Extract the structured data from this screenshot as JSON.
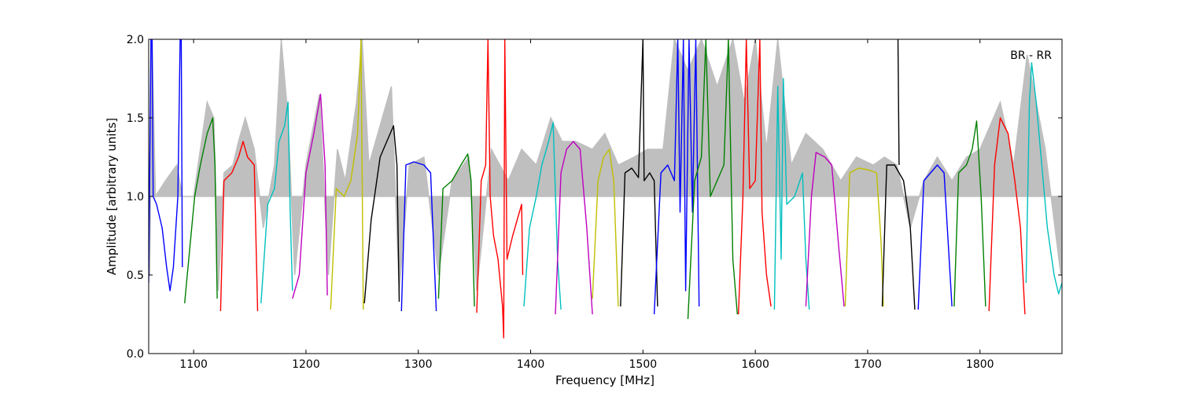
{
  "chart_data": {
    "type": "line",
    "annotation": "BR - RR",
    "xlabel": "Frequency [MHz]",
    "ylabel": "Amplitude [arbitrary units]",
    "xlim": [
      1060,
      1873
    ],
    "ylim": [
      0.0,
      2.0
    ],
    "x_ticks": [
      1100,
      1200,
      1300,
      1400,
      1500,
      1600,
      1700,
      1800
    ],
    "y_ticks": [
      0.0,
      0.5,
      1.0,
      1.5,
      2.0
    ],
    "y_tick_labels": [
      "0.0",
      "0.5",
      "1.0",
      "1.5",
      "2.0"
    ],
    "grid": false,
    "background_series": {
      "color": "#bfbfbf",
      "points": [
        [
          1061,
          0.5
        ],
        [
          1063,
          2.0
        ],
        [
          1066,
          1.0
        ],
        [
          1075,
          1.1
        ],
        [
          1085,
          1.2
        ],
        [
          1090,
          1.0
        ],
        [
          1100,
          1.0
        ],
        [
          1106,
          1.3
        ],
        [
          1112,
          1.6
        ],
        [
          1118,
          1.5
        ],
        [
          1122,
          0.4
        ],
        [
          1127,
          1.15
        ],
        [
          1135,
          1.2
        ],
        [
          1140,
          1.35
        ],
        [
          1146,
          1.5
        ],
        [
          1154,
          1.3
        ],
        [
          1162,
          0.8
        ],
        [
          1172,
          1.2
        ],
        [
          1178,
          2.0
        ],
        [
          1184,
          1.5
        ],
        [
          1190,
          0.5
        ],
        [
          1200,
          1.2
        ],
        [
          1212,
          1.65
        ],
        [
          1220,
          0.5
        ],
        [
          1228,
          1.3
        ],
        [
          1235,
          1.1
        ],
        [
          1245,
          1.6
        ],
        [
          1250,
          2.0
        ],
        [
          1256,
          1.2
        ],
        [
          1268,
          1.5
        ],
        [
          1276,
          1.7
        ],
        [
          1283,
          0.4
        ],
        [
          1292,
          1.2
        ],
        [
          1305,
          1.25
        ],
        [
          1318,
          0.5
        ],
        [
          1330,
          1.1
        ],
        [
          1345,
          1.25
        ],
        [
          1352,
          0.4
        ],
        [
          1365,
          1.3
        ],
        [
          1380,
          1.1
        ],
        [
          1392,
          1.3
        ],
        [
          1405,
          1.2
        ],
        [
          1418,
          1.5
        ],
        [
          1428,
          1.35
        ],
        [
          1440,
          1.35
        ],
        [
          1455,
          1.3
        ],
        [
          1466,
          1.4
        ],
        [
          1478,
          1.2
        ],
        [
          1492,
          1.25
        ],
        [
          1504,
          1.3
        ],
        [
          1518,
          1.3
        ],
        [
          1528,
          2.0
        ],
        [
          1540,
          1.8
        ],
        [
          1552,
          2.0
        ],
        [
          1566,
          1.7
        ],
        [
          1580,
          2.0
        ],
        [
          1590,
          1.6
        ],
        [
          1600,
          2.0
        ],
        [
          1610,
          1.3
        ],
        [
          1620,
          2.0
        ],
        [
          1632,
          1.2
        ],
        [
          1645,
          1.4
        ],
        [
          1660,
          1.3
        ],
        [
          1676,
          1.1
        ],
        [
          1690,
          1.25
        ],
        [
          1705,
          1.2
        ],
        [
          1715,
          1.25
        ],
        [
          1726,
          1.2
        ],
        [
          1738,
          0.8
        ],
        [
          1750,
          1.1
        ],
        [
          1762,
          1.25
        ],
        [
          1775,
          1.1
        ],
        [
          1788,
          1.25
        ],
        [
          1800,
          1.3
        ],
        [
          1818,
          1.6
        ],
        [
          1830,
          1.2
        ],
        [
          1842,
          1.9
        ],
        [
          1858,
          1.3
        ],
        [
          1872,
          0.5
        ]
      ]
    },
    "series": [
      {
        "color": "#0000ff",
        "points": [
          [
            1060,
            0.45
          ],
          [
            1062,
            2.0
          ],
          [
            1063,
            2.0
          ],
          [
            1064,
            1.0
          ],
          [
            1067,
            0.95
          ],
          [
            1072,
            0.8
          ],
          [
            1076,
            0.55
          ],
          [
            1079,
            0.4
          ],
          [
            1082,
            0.55
          ],
          [
            1086,
            1.0
          ],
          [
            1088,
            2.0
          ],
          [
            1089,
            2.0
          ],
          [
            1090,
            0.55
          ]
        ]
      },
      {
        "color": "#008000",
        "points": [
          [
            1092,
            0.32
          ],
          [
            1097,
            0.7
          ],
          [
            1101,
            1.0
          ],
          [
            1106,
            1.2
          ],
          [
            1112,
            1.4
          ],
          [
            1117,
            1.5
          ],
          [
            1119,
            1.2
          ],
          [
            1121,
            0.35
          ]
        ]
      },
      {
        "color": "#ff0000",
        "points": [
          [
            1124,
            0.27
          ],
          [
            1127,
            1.1
          ],
          [
            1134,
            1.15
          ],
          [
            1140,
            1.25
          ],
          [
            1144,
            1.35
          ],
          [
            1148,
            1.25
          ],
          [
            1154,
            1.2
          ],
          [
            1157,
            0.27
          ]
        ]
      },
      {
        "color": "#00bfbf",
        "points": [
          [
            1160,
            0.32
          ],
          [
            1166,
            0.95
          ],
          [
            1172,
            1.05
          ],
          [
            1176,
            1.35
          ],
          [
            1181,
            1.45
          ],
          [
            1184,
            1.6
          ],
          [
            1186,
            0.9
          ],
          [
            1188,
            0.4
          ]
        ]
      },
      {
        "color": "#bf00bf",
        "points": [
          [
            1188,
            0.35
          ],
          [
            1194,
            0.5
          ],
          [
            1200,
            1.15
          ],
          [
            1207,
            1.4
          ],
          [
            1213,
            1.65
          ],
          [
            1217,
            1.2
          ],
          [
            1219,
            0.37
          ]
        ]
      },
      {
        "color": "#bfbf00",
        "points": [
          [
            1222,
            0.28
          ],
          [
            1227,
            1.05
          ],
          [
            1234,
            1.0
          ],
          [
            1240,
            1.1
          ],
          [
            1246,
            1.4
          ],
          [
            1249,
            2.0
          ],
          [
            1251,
            0.28
          ]
        ]
      },
      {
        "color": "#000000",
        "points": [
          [
            1252,
            0.32
          ],
          [
            1258,
            0.85
          ],
          [
            1266,
            1.25
          ],
          [
            1272,
            1.35
          ],
          [
            1278,
            1.45
          ],
          [
            1281,
            1.2
          ],
          [
            1283,
            0.33
          ]
        ]
      },
      {
        "color": "#0000ff",
        "points": [
          [
            1285,
            0.27
          ],
          [
            1289,
            1.2
          ],
          [
            1296,
            1.22
          ],
          [
            1305,
            1.2
          ],
          [
            1311,
            1.15
          ],
          [
            1316,
            0.27
          ]
        ]
      },
      {
        "color": "#008000",
        "points": [
          [
            1318,
            0.35
          ],
          [
            1322,
            1.05
          ],
          [
            1330,
            1.1
          ],
          [
            1338,
            1.2
          ],
          [
            1344,
            1.27
          ],
          [
            1347,
            1.1
          ],
          [
            1350,
            0.3
          ]
        ]
      },
      {
        "color": "#ff0000",
        "points": [
          [
            1352,
            0.26
          ],
          [
            1356,
            1.1
          ],
          [
            1360,
            1.2
          ],
          [
            1362,
            2.0
          ],
          [
            1364,
            1.0
          ],
          [
            1367,
            0.75
          ],
          [
            1371,
            0.6
          ],
          [
            1375,
            0.3
          ],
          [
            1376,
            0.1
          ],
          [
            1377,
            2.0
          ],
          [
            1379,
            0.6
          ],
          [
            1384,
            0.75
          ],
          [
            1388,
            0.85
          ],
          [
            1392,
            0.95
          ],
          [
            1393,
            0.5
          ]
        ]
      },
      {
        "color": "#00bfbf",
        "points": [
          [
            1394,
            0.3
          ],
          [
            1399,
            0.8
          ],
          [
            1405,
            1.0
          ],
          [
            1410,
            1.2
          ],
          [
            1416,
            1.35
          ],
          [
            1420,
            1.47
          ],
          [
            1424,
            0.6
          ],
          [
            1427,
            0.28
          ]
        ]
      },
      {
        "color": "#bf00bf",
        "points": [
          [
            1422,
            0.25
          ],
          [
            1427,
            1.15
          ],
          [
            1432,
            1.3
          ],
          [
            1438,
            1.35
          ],
          [
            1444,
            1.3
          ],
          [
            1450,
            0.8
          ],
          [
            1455,
            0.25
          ]
        ]
      },
      {
        "color": "#bfbf00",
        "points": [
          [
            1455,
            0.35
          ],
          [
            1460,
            1.1
          ],
          [
            1465,
            1.25
          ],
          [
            1470,
            1.3
          ],
          [
            1474,
            1.1
          ],
          [
            1478,
            0.3
          ]
        ]
      },
      {
        "color": "#000000",
        "points": [
          [
            1480,
            0.3
          ],
          [
            1484,
            1.15
          ],
          [
            1490,
            1.18
          ],
          [
            1496,
            1.12
          ],
          [
            1500,
            2.0
          ],
          [
            1501,
            1.1
          ],
          [
            1506,
            1.15
          ],
          [
            1510,
            1.1
          ],
          [
            1513,
            0.3
          ]
        ]
      },
      {
        "color": "#000000",
        "points": [
          [
            1727,
            2.0
          ],
          [
            1728,
            1.2
          ]
        ]
      },
      {
        "color": "#0000ff",
        "points": [
          [
            1510,
            0.25
          ],
          [
            1516,
            1.15
          ],
          [
            1522,
            1.2
          ],
          [
            1528,
            1.1
          ],
          [
            1531,
            2.0
          ],
          [
            1533,
            0.9
          ],
          [
            1536,
            2.0
          ],
          [
            1538,
            0.4
          ],
          [
            1541,
            2.0
          ],
          [
            1544,
            0.9
          ],
          [
            1547,
            2.0
          ],
          [
            1550,
            0.3
          ]
        ]
      },
      {
        "color": "#008000",
        "points": [
          [
            1540,
            0.22
          ],
          [
            1546,
            1.1
          ],
          [
            1552,
            1.25
          ],
          [
            1556,
            2.0
          ],
          [
            1560,
            1.0
          ],
          [
            1566,
            1.1
          ],
          [
            1572,
            1.2
          ],
          [
            1576,
            2.0
          ],
          [
            1580,
            0.6
          ],
          [
            1584,
            0.25
          ]
        ]
      },
      {
        "color": "#ff0000",
        "points": [
          [
            1585,
            0.25
          ],
          [
            1589,
            1.0
          ],
          [
            1592,
            2.0
          ],
          [
            1595,
            1.05
          ],
          [
            1600,
            1.1
          ],
          [
            1604,
            2.0
          ],
          [
            1606,
            0.9
          ],
          [
            1610,
            0.5
          ],
          [
            1614,
            0.3
          ]
        ]
      },
      {
        "color": "#00bfbf",
        "points": [
          [
            1617,
            0.28
          ],
          [
            1620,
            1.7
          ],
          [
            1623,
            0.6
          ],
          [
            1625,
            1.75
          ],
          [
            1628,
            0.95
          ],
          [
            1635,
            1.0
          ],
          [
            1642,
            1.15
          ],
          [
            1645,
            0.6
          ],
          [
            1648,
            0.28
          ]
        ]
      },
      {
        "color": "#bf00bf",
        "points": [
          [
            1645,
            0.3
          ],
          [
            1650,
            1.0
          ],
          [
            1654,
            1.28
          ],
          [
            1662,
            1.25
          ],
          [
            1668,
            1.2
          ],
          [
            1674,
            0.7
          ],
          [
            1679,
            0.3
          ]
        ]
      },
      {
        "color": "#bfbf00",
        "points": [
          [
            1680,
            0.3
          ],
          [
            1684,
            1.15
          ],
          [
            1692,
            1.18
          ],
          [
            1700,
            1.17
          ],
          [
            1708,
            1.15
          ],
          [
            1712,
            0.7
          ],
          [
            1714,
            0.3
          ]
        ]
      },
      {
        "color": "#000000",
        "points": [
          [
            1713,
            0.3
          ],
          [
            1717,
            1.2
          ],
          [
            1724,
            1.2
          ],
          [
            1732,
            1.1
          ],
          [
            1738,
            0.8
          ],
          [
            1742,
            0.28
          ]
        ]
      },
      {
        "color": "#0000ff",
        "points": [
          [
            1745,
            0.28
          ],
          [
            1750,
            1.1
          ],
          [
            1756,
            1.15
          ],
          [
            1762,
            1.2
          ],
          [
            1768,
            1.15
          ],
          [
            1775,
            0.3
          ]
        ]
      },
      {
        "color": "#008000",
        "points": [
          [
            1777,
            0.3
          ],
          [
            1781,
            1.15
          ],
          [
            1788,
            1.2
          ],
          [
            1793,
            1.3
          ],
          [
            1797,
            1.48
          ],
          [
            1801,
            1.0
          ],
          [
            1805,
            0.3
          ]
        ]
      },
      {
        "color": "#ff0000",
        "points": [
          [
            1808,
            0.27
          ],
          [
            1813,
            1.2
          ],
          [
            1818,
            1.5
          ],
          [
            1825,
            1.4
          ],
          [
            1831,
            1.1
          ],
          [
            1836,
            0.8
          ],
          [
            1840,
            0.25
          ]
        ]
      },
      {
        "color": "#00bfbf",
        "points": [
          [
            1841,
            0.45
          ],
          [
            1844,
            1.6
          ],
          [
            1846,
            1.85
          ],
          [
            1850,
            1.6
          ],
          [
            1855,
            1.2
          ],
          [
            1860,
            0.8
          ],
          [
            1866,
            0.5
          ],
          [
            1870,
            0.38
          ],
          [
            1873,
            0.45
          ]
        ]
      }
    ]
  }
}
